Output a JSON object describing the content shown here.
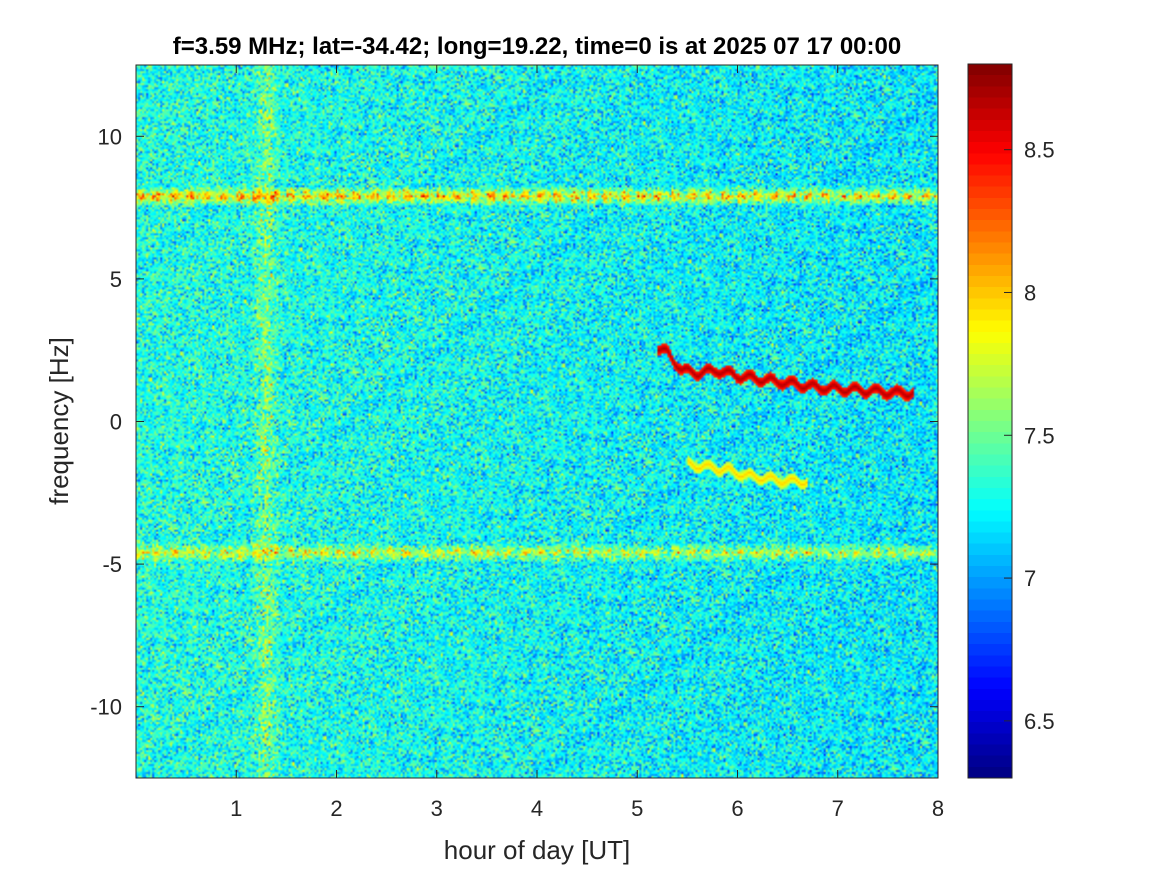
{
  "chart_data": {
    "type": "heatmap",
    "title": "f=3.59 MHz;  lat=-34.42; long=19.22, time=0 is at 2025 07 17 00:00",
    "xlabel": "hour of day [UT]",
    "ylabel": "frequency [Hz]",
    "xlim": [
      0,
      8
    ],
    "ylim": [
      -12.5,
      12.5
    ],
    "x_ticks": [
      1,
      2,
      3,
      4,
      5,
      6,
      7,
      8
    ],
    "x_tick_labels": [
      "1",
      "2",
      "3",
      "4",
      "5",
      "6",
      "7",
      "8"
    ],
    "y_ticks": [
      10,
      5,
      0,
      -5,
      -10
    ],
    "y_tick_labels": [
      "10",
      "5",
      "0",
      "-5",
      "-10"
    ],
    "colormap": "jet",
    "clim": [
      6.3,
      8.8
    ],
    "colorbar_ticks": [
      8.5,
      8,
      7.5,
      7,
      6.5
    ],
    "colorbar_tick_labels": [
      "8.5",
      "8",
      "7.5",
      "7",
      "6.5"
    ],
    "background_level": 7.2,
    "features": [
      {
        "kind": "horizontal_band",
        "frequency": 7.9,
        "x_range": [
          0,
          8
        ],
        "level": 8.2
      },
      {
        "kind": "horizontal_band",
        "frequency": -4.6,
        "x_range": [
          0,
          8
        ],
        "level": 7.9
      },
      {
        "kind": "vertical_band",
        "x": 1.3,
        "level": 7.9
      },
      {
        "kind": "doppler_trace",
        "level": 8.7,
        "x": [
          5.2,
          5.3,
          5.45,
          5.6,
          5.8,
          6.0,
          6.2,
          6.4,
          6.6,
          6.8,
          7.0,
          7.2,
          7.4,
          7.6,
          7.75
        ],
        "y": [
          2.6,
          2.4,
          1.8,
          1.7,
          1.8,
          1.6,
          1.5,
          1.4,
          1.3,
          1.2,
          1.15,
          1.1,
          1.05,
          1.0,
          1.0
        ]
      },
      {
        "kind": "doppler_trace",
        "level": 8.0,
        "x": [
          5.5,
          5.7,
          5.9,
          6.1,
          6.3,
          6.5,
          6.7
        ],
        "y": [
          -1.5,
          -1.6,
          -1.7,
          -1.9,
          -2.0,
          -2.1,
          -2.1
        ]
      }
    ]
  }
}
